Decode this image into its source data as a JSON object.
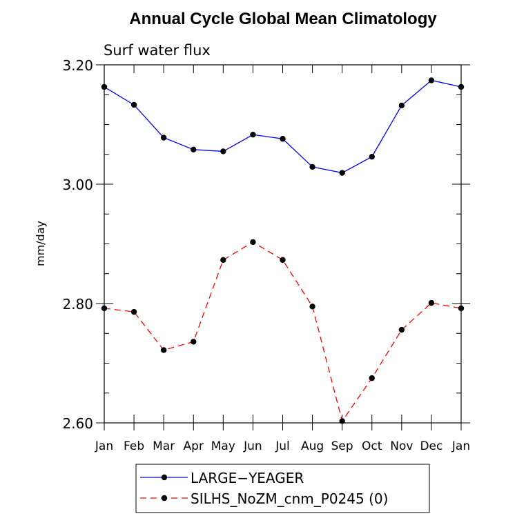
{
  "chart_data": {
    "type": "line",
    "title": "Annual Cycle Global Mean Climatology",
    "subtitle": "Surf water flux",
    "ylabel": "mm/day",
    "xlabel": "",
    "ylim": [
      2.6,
      3.2
    ],
    "yticks": [
      "2.60",
      "2.80",
      "3.00",
      "3.20"
    ],
    "yticks_values": [
      2.6,
      2.8,
      3.0,
      3.2
    ],
    "categories": [
      "Jan",
      "Feb",
      "Mar",
      "Apr",
      "May",
      "Jun",
      "Jul",
      "Aug",
      "Sep",
      "Oct",
      "Nov",
      "Dec",
      "Jan"
    ],
    "series": [
      {
        "name": "LARGE−YEAGER",
        "color": "#0000ff",
        "dash": "solid",
        "values": [
          3.163,
          3.133,
          3.078,
          3.058,
          3.055,
          3.083,
          3.076,
          3.029,
          3.019,
          3.046,
          3.132,
          3.174,
          3.163
        ]
      },
      {
        "name": "SILHS_NoZM_cnm_P0245 (0)",
        "color": "#ff0000",
        "dash": "dashed",
        "values": [
          2.792,
          2.786,
          2.722,
          2.736,
          2.873,
          2.903,
          2.873,
          2.795,
          2.603,
          2.675,
          2.756,
          2.801,
          2.792
        ]
      }
    ],
    "legend_position": "bottom"
  }
}
